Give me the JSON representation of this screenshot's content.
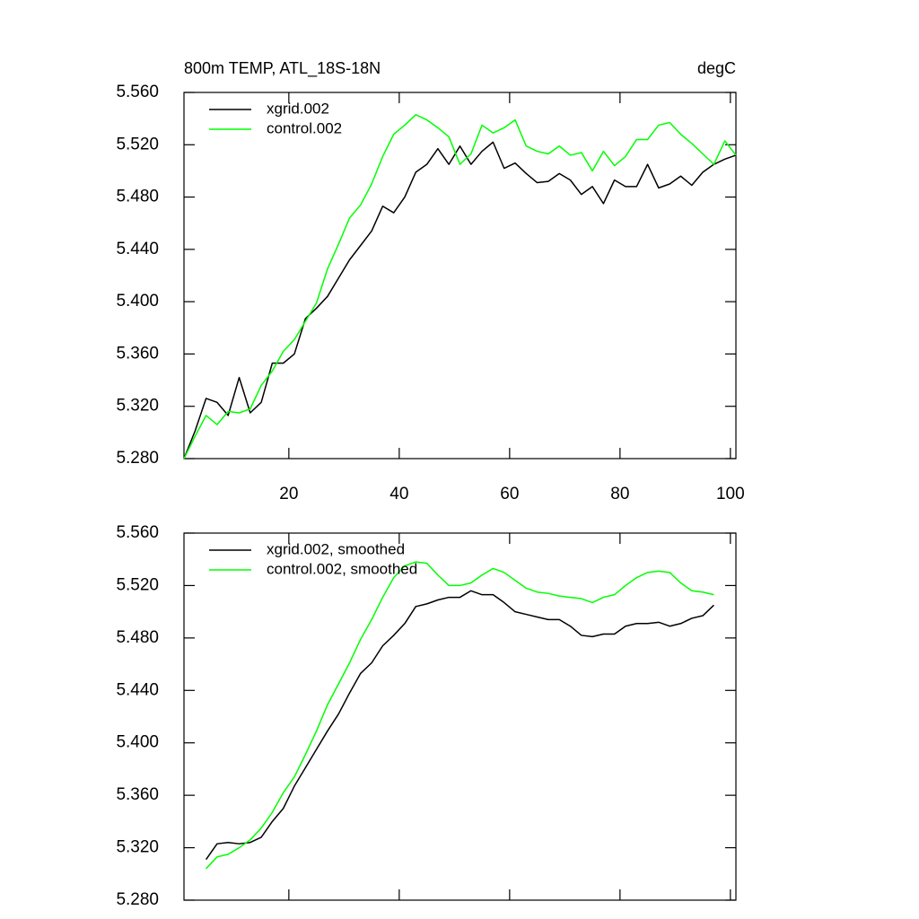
{
  "chart_data": [
    {
      "type": "line",
      "title": "800m TEMP, ATL_18S-18N",
      "units": "degC",
      "x": [
        1,
        3,
        5,
        7,
        9,
        11,
        13,
        15,
        17,
        19,
        21,
        23,
        25,
        27,
        29,
        31,
        33,
        35,
        37,
        39,
        41,
        43,
        45,
        47,
        49,
        51,
        53,
        55,
        57,
        59,
        61,
        63,
        65,
        67,
        69,
        71,
        73,
        75,
        77,
        79,
        81,
        83,
        85,
        87,
        89,
        91,
        93,
        95,
        97,
        99,
        101
      ],
      "series": [
        {
          "name": "xgrid.002",
          "color": "#000000",
          "values": [
            5.28,
            5.301,
            5.326,
            5.323,
            5.313,
            5.342,
            5.315,
            5.323,
            5.353,
            5.353,
            5.36,
            5.387,
            5.395,
            5.404,
            5.418,
            5.432,
            5.443,
            5.454,
            5.473,
            5.468,
            5.48,
            5.499,
            5.505,
            5.517,
            5.505,
            5.519,
            5.505,
            5.515,
            5.522,
            5.502,
            5.506,
            5.498,
            5.491,
            5.492,
            5.498,
            5.493,
            5.482,
            5.488,
            5.475,
            5.493,
            5.488,
            5.488,
            5.505,
            5.487,
            5.49,
            5.496,
            5.489,
            5.499,
            5.505,
            5.509,
            5.512
          ]
        },
        {
          "name": "control.002",
          "color": "#00ff00",
          "values": [
            5.28,
            5.297,
            5.313,
            5.306,
            5.316,
            5.315,
            5.318,
            5.336,
            5.347,
            5.362,
            5.371,
            5.385,
            5.399,
            5.425,
            5.444,
            5.464,
            5.474,
            5.49,
            5.511,
            5.528,
            5.535,
            5.543,
            5.539,
            5.533,
            5.526,
            5.505,
            5.513,
            5.535,
            5.529,
            5.533,
            5.539,
            5.519,
            5.515,
            5.513,
            5.519,
            5.512,
            5.514,
            5.5,
            5.515,
            5.504,
            5.511,
            5.524,
            5.524,
            5.535,
            5.537,
            5.528,
            5.521,
            5.513,
            5.505,
            5.523,
            5.512
          ]
        }
      ],
      "xlim": [
        1,
        101
      ],
      "xticks": [
        20,
        40,
        60,
        80,
        100
      ],
      "xtick_labels": true,
      "ylim": [
        5.28,
        5.56
      ],
      "yticks": [
        {
          "value": 5.28,
          "label": "5.280"
        },
        {
          "value": 5.32,
          "label": "5.320"
        },
        {
          "value": 5.36,
          "label": "5.360"
        },
        {
          "value": 5.4,
          "label": "5.400"
        },
        {
          "value": 5.44,
          "label": "5.440"
        },
        {
          "value": 5.48,
          "label": "5.480"
        },
        {
          "value": 5.52,
          "label": "5.520"
        },
        {
          "value": 5.56,
          "label": "5.560"
        }
      ],
      "legend": "upper left"
    },
    {
      "type": "line",
      "x": [
        5,
        7,
        9,
        11,
        13,
        15,
        17,
        19,
        21,
        23,
        25,
        27,
        29,
        31,
        33,
        35,
        37,
        39,
        41,
        43,
        45,
        47,
        49,
        51,
        53,
        55,
        57,
        59,
        61,
        63,
        65,
        67,
        69,
        71,
        73,
        75,
        77,
        79,
        81,
        83,
        85,
        87,
        89,
        91,
        93,
        95,
        97
      ],
      "series": [
        {
          "name": "xgrid.002, smoothed",
          "color": "#000000",
          "values": [
            5.311,
            5.323,
            5.324,
            5.323,
            5.324,
            5.328,
            5.34,
            5.35,
            5.367,
            5.381,
            5.395,
            5.409,
            5.422,
            5.438,
            5.453,
            5.461,
            5.474,
            5.482,
            5.491,
            5.504,
            5.506,
            5.509,
            5.511,
            5.511,
            5.516,
            5.513,
            5.513,
            5.507,
            5.5,
            5.498,
            5.496,
            5.494,
            5.494,
            5.489,
            5.482,
            5.481,
            5.483,
            5.483,
            5.489,
            5.491,
            5.491,
            5.492,
            5.489,
            5.491,
            5.495,
            5.497,
            5.505
          ]
        },
        {
          "name": "control.002, smoothed",
          "color": "#00ff00",
          "values": [
            5.304,
            5.313,
            5.315,
            5.32,
            5.326,
            5.335,
            5.347,
            5.362,
            5.374,
            5.391,
            5.409,
            5.429,
            5.445,
            5.461,
            5.479,
            5.494,
            5.511,
            5.526,
            5.535,
            5.538,
            5.537,
            5.528,
            5.52,
            5.52,
            5.522,
            5.528,
            5.533,
            5.53,
            5.524,
            5.518,
            5.515,
            5.514,
            5.512,
            5.511,
            5.51,
            5.507,
            5.511,
            5.513,
            5.52,
            5.526,
            5.53,
            5.531,
            5.53,
            5.522,
            5.516,
            5.515,
            5.513
          ]
        }
      ],
      "xlim": [
        1,
        101
      ],
      "xticks": [
        20,
        40,
        60,
        80,
        100
      ],
      "xtick_labels": false,
      "ylim": [
        5.28,
        5.56
      ],
      "yticks": [
        {
          "value": 5.28,
          "label": "5.280"
        },
        {
          "value": 5.32,
          "label": "5.320"
        },
        {
          "value": 5.36,
          "label": "5.360"
        },
        {
          "value": 5.4,
          "label": "5.400"
        },
        {
          "value": 5.44,
          "label": "5.440"
        },
        {
          "value": 5.48,
          "label": "5.480"
        },
        {
          "value": 5.52,
          "label": "5.520"
        },
        {
          "value": 5.56,
          "label": "5.560"
        }
      ],
      "legend": "upper left"
    }
  ]
}
